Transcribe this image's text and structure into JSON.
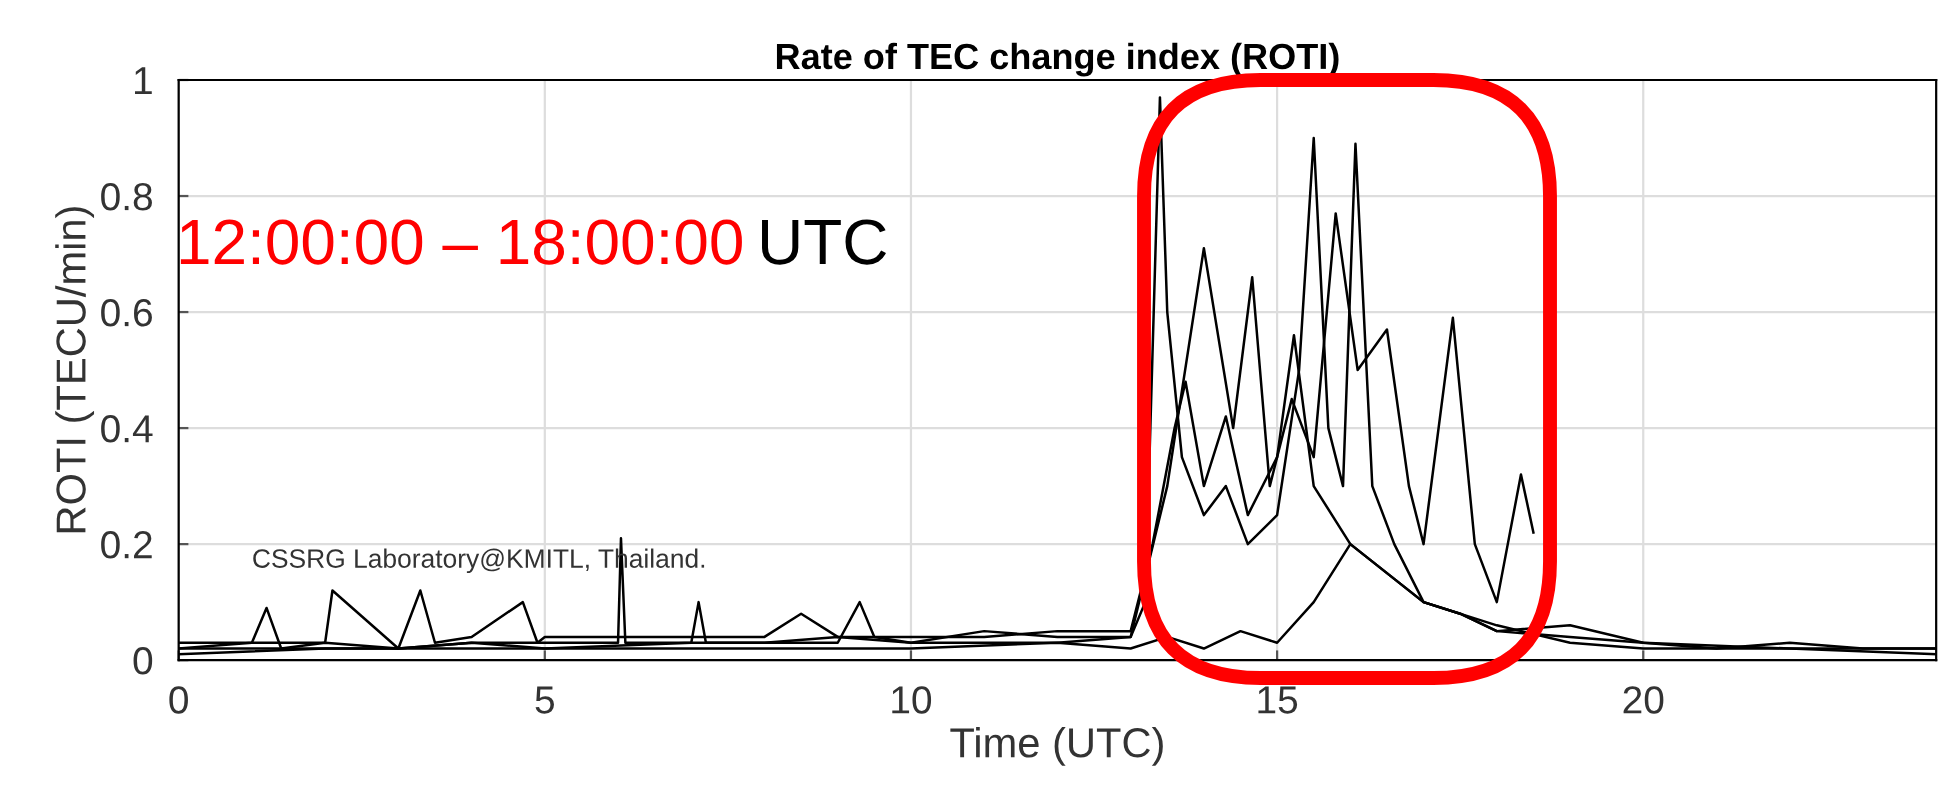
{
  "chart_data": {
    "type": "line",
    "title": "Rate of TEC change index (ROTI)",
    "xlabel": "Time (UTC)",
    "ylabel": "ROTI (TECU/min)",
    "annotations": [
      "12:00:00 – 18:00:00",
      "UTC",
      "CSSRG Laboratory@KMITL, Thailand."
    ],
    "xlim": [
      0,
      24
    ],
    "ylim": [
      0,
      1
    ],
    "xticks": [
      0,
      5,
      10,
      15,
      20
    ],
    "yticks": [
      0,
      0.2,
      0.4,
      0.6,
      0.8,
      1
    ],
    "grid": true,
    "line_style": "solid",
    "marker": "none",
    "series": [
      {
        "color": "#000000",
        "x": [
          0,
          1,
          1.2,
          1.4,
          2,
          3,
          4,
          5,
          6,
          6.04,
          6.1,
          7,
          8,
          9,
          10,
          11,
          12,
          13,
          13.2,
          13.4,
          13.5,
          13.7,
          14,
          14.3,
          14.6,
          15,
          15.3,
          15.5,
          15.7,
          15.9,
          16.07,
          16.3,
          16.6,
          17,
          17.5,
          18,
          19,
          20,
          21,
          22,
          23,
          24
        ],
        "values": [
          0.02,
          0.03,
          0.09,
          0.02,
          0.03,
          0.02,
          0.03,
          0.03,
          0.03,
          0.21,
          0.03,
          0.03,
          0.03,
          0.04,
          0.03,
          0.03,
          0.03,
          0.04,
          0.1,
          0.97,
          0.6,
          0.35,
          0.25,
          0.3,
          0.2,
          0.25,
          0.5,
          0.9,
          0.4,
          0.3,
          0.89,
          0.3,
          0.2,
          0.1,
          0.08,
          0.05,
          0.04,
          0.03,
          0.02,
          0.03,
          0.02,
          0.02
        ]
      },
      {
        "color": "#000000",
        "x": [
          0,
          2,
          2.1,
          3,
          4,
          5,
          7,
          7.1,
          7.2,
          8,
          9,
          9.3,
          9.5,
          10,
          11,
          12,
          13,
          13.5,
          14.0,
          14.4,
          14.66,
          14.9,
          15.2,
          15.5,
          15.8,
          16.1,
          16.5,
          16.8,
          17,
          17.4,
          17.7,
          18,
          18.33,
          18.5
        ],
        "values": [
          0.03,
          0.03,
          0.12,
          0.02,
          0.03,
          0.02,
          0.03,
          0.1,
          0.03,
          0.03,
          0.03,
          0.1,
          0.04,
          0.03,
          0.05,
          0.04,
          0.04,
          0.3,
          0.71,
          0.4,
          0.66,
          0.3,
          0.45,
          0.35,
          0.77,
          0.5,
          0.57,
          0.3,
          0.2,
          0.59,
          0.2,
          0.1,
          0.32,
          0.22
        ]
      },
      {
        "color": "#000000",
        "x": [
          0,
          3,
          3.3,
          3.5,
          4,
          4.7,
          4.9,
          5,
          6,
          8,
          8.5,
          9,
          10,
          11,
          12,
          13,
          13.3,
          13.6,
          13.75,
          14,
          14.3,
          14.6,
          15,
          15.23,
          15.5,
          16,
          16.5,
          17,
          17.5,
          18,
          19,
          20,
          22,
          24
        ],
        "values": [
          0.02,
          0.02,
          0.12,
          0.03,
          0.04,
          0.1,
          0.03,
          0.04,
          0.04,
          0.04,
          0.08,
          0.04,
          0.04,
          0.04,
          0.05,
          0.05,
          0.2,
          0.4,
          0.48,
          0.3,
          0.42,
          0.25,
          0.35,
          0.56,
          0.3,
          0.2,
          0.15,
          0.1,
          0.08,
          0.05,
          0.06,
          0.03,
          0.02,
          0.02
        ]
      },
      {
        "color": "#000000",
        "x": [
          0,
          2,
          4,
          6,
          8,
          10,
          12,
          13,
          13.5,
          14,
          14.5,
          15,
          15.5,
          16,
          17,
          18,
          19,
          20,
          22,
          24
        ],
        "values": [
          0.01,
          0.02,
          0.02,
          0.02,
          0.02,
          0.02,
          0.03,
          0.02,
          0.04,
          0.02,
          0.05,
          0.03,
          0.1,
          0.2,
          0.1,
          0.06,
          0.03,
          0.02,
          0.02,
          0.01
        ]
      }
    ]
  }
}
